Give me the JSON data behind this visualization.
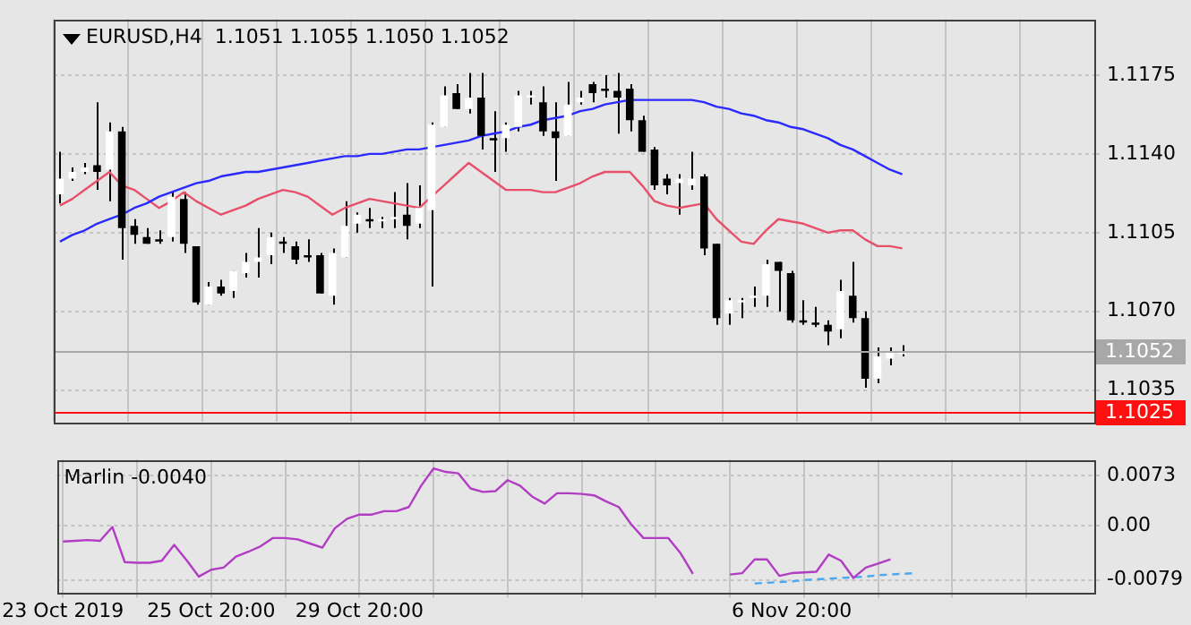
{
  "chart_data": [
    {
      "type": "candlestick",
      "title": "EURUSD,H4  1.1051 1.1055 1.1050 1.1052",
      "categories": [
        null,
        null,
        null,
        null,
        null,
        null,
        null,
        null,
        null,
        null,
        null,
        null,
        null,
        null,
        null,
        null,
        null,
        null,
        null,
        null,
        null,
        null,
        null,
        null,
        null,
        null,
        null,
        null,
        null,
        null,
        null,
        null,
        null,
        null,
        null,
        null,
        null,
        null,
        null,
        null,
        null,
        null,
        null,
        null,
        null,
        null,
        null,
        null,
        null,
        null,
        null,
        null,
        null,
        null,
        null,
        null,
        null,
        null,
        null,
        null,
        null,
        null,
        null,
        null,
        null,
        null,
        null,
        null,
        null,
        null,
        null,
        null,
        null,
        null,
        null,
        null,
        null,
        null,
        null,
        null,
        null,
        null,
        null,
        null
      ],
      "ohlc": [
        [
          1.1122,
          1.1141,
          1.1118,
          1.1129
        ],
        [
          1.1129,
          1.1134,
          1.1128,
          1.1132
        ],
        [
          1.1132,
          1.1136,
          1.1131,
          1.1134
        ],
        [
          1.1135,
          1.1163,
          1.1124,
          1.1132
        ],
        [
          1.1133,
          1.1154,
          1.1119,
          1.115
        ],
        [
          1.115,
          1.1152,
          1.1093,
          1.1107
        ],
        [
          1.1108,
          1.1111,
          1.11,
          1.1104
        ],
        [
          1.1103,
          1.1107,
          1.11,
          1.11
        ],
        [
          1.1102,
          1.1106,
          1.11,
          1.1101
        ],
        [
          1.1103,
          1.1123,
          1.1101,
          1.1121
        ],
        [
          1.112,
          1.1123,
          1.1096,
          1.11
        ],
        [
          1.1099,
          1.1099,
          1.1073,
          1.1074
        ],
        [
          1.1073,
          1.1083,
          1.1073,
          1.1081
        ],
        [
          1.1081,
          1.1084,
          1.1077,
          1.1078
        ],
        [
          1.1079,
          1.1088,
          1.1076,
          1.1088
        ],
        [
          1.1087,
          1.1096,
          1.1085,
          1.1092
        ],
        [
          1.1092,
          1.1107,
          1.1085,
          1.1094
        ],
        [
          1.1095,
          1.1105,
          1.1091,
          1.1103
        ],
        [
          1.1101,
          1.1103,
          1.1096,
          1.11
        ],
        [
          1.1099,
          1.1101,
          1.1091,
          1.1093
        ],
        [
          1.1095,
          1.1102,
          1.1092,
          1.1094
        ],
        [
          1.1095,
          1.1096,
          1.1078,
          1.1078
        ],
        [
          1.1077,
          1.1098,
          1.1073,
          1.1096
        ],
        [
          1.1094,
          1.1119,
          1.1094,
          1.1108
        ],
        [
          1.1109,
          1.1114,
          1.1105,
          1.1113
        ],
        [
          1.1111,
          1.1116,
          1.1107,
          1.111
        ],
        [
          1.111,
          1.1112,
          1.1107,
          1.1111
        ],
        [
          1.1111,
          1.1123,
          1.1107,
          1.1112
        ],
        [
          1.1113,
          1.1127,
          1.1102,
          1.1108
        ],
        [
          1.1109,
          1.1126,
          1.1107,
          1.1116
        ],
        [
          1.1115,
          1.1154,
          1.1081,
          1.1153
        ],
        [
          1.1152,
          1.117,
          1.1152,
          1.1166
        ],
        [
          1.1167,
          1.1171,
          1.116,
          1.116
        ],
        [
          1.116,
          1.1176,
          1.1158,
          1.1165
        ],
        [
          1.1165,
          1.1176,
          1.1142,
          1.1148
        ],
        [
          1.1147,
          1.1159,
          1.1132,
          1.1146
        ],
        [
          1.1147,
          1.1154,
          1.1141,
          1.1153
        ],
        [
          1.1152,
          1.1168,
          1.115,
          1.1166
        ],
        [
          1.1165,
          1.1168,
          1.1162,
          1.1166
        ],
        [
          1.1163,
          1.117,
          1.1148,
          1.115
        ],
        [
          1.115,
          1.1163,
          1.1128,
          1.1147
        ],
        [
          1.1148,
          1.1172,
          1.1148,
          1.1162
        ],
        [
          1.1163,
          1.1168,
          1.1162,
          1.1165
        ],
        [
          1.1171,
          1.1172,
          1.1163,
          1.1167
        ],
        [
          1.1169,
          1.1175,
          1.1165,
          1.1168
        ],
        [
          1.1168,
          1.1176,
          1.1149,
          1.1165
        ],
        [
          1.1169,
          1.1171,
          1.115,
          1.1155
        ],
        [
          1.1155,
          1.1157,
          1.1141,
          1.1141
        ],
        [
          1.1142,
          1.1143,
          1.1124,
          1.1126
        ],
        [
          1.1129,
          1.1131,
          1.1122,
          1.1126
        ],
        [
          1.1127,
          1.1131,
          1.1113,
          1.1129
        ],
        [
          1.1126,
          1.1141,
          1.1124,
          1.1129
        ],
        [
          1.113,
          1.1131,
          1.1095,
          1.1098
        ],
        [
          1.11,
          1.11,
          1.1064,
          1.1067
        ],
        [
          1.1069,
          1.1076,
          1.1064,
          1.1075
        ],
        [
          1.1074,
          1.1076,
          1.1067,
          1.1075
        ],
        [
          1.1076,
          1.1081,
          1.1072,
          1.1077
        ],
        [
          1.1077,
          1.1093,
          1.1072,
          1.1091
        ],
        [
          1.1092,
          1.1092,
          1.107,
          1.1088
        ],
        [
          1.1087,
          1.1088,
          1.1065,
          1.1066
        ],
        [
          1.1066,
          1.1075,
          1.1064,
          1.1065
        ],
        [
          1.1065,
          1.1072,
          1.1063,
          1.1064
        ],
        [
          1.1064,
          1.1066,
          1.1055,
          1.1061
        ],
        [
          1.1062,
          1.1084,
          1.1058,
          1.1079
        ],
        [
          1.1077,
          1.1092,
          1.1065,
          1.1067
        ],
        [
          1.1067,
          1.107,
          1.1036,
          1.104
        ],
        [
          1.104,
          1.1054,
          1.1038,
          1.105
        ],
        [
          1.1049,
          1.1054,
          1.1046,
          1.1052
        ],
        [
          1.1051,
          1.1055,
          1.105,
          1.1052
        ],
        null,
        null,
        null,
        null,
        null,
        null,
        null,
        null,
        null,
        null,
        null,
        null,
        null,
        null,
        null
      ],
      "series": [
        {
          "type": "line",
          "color": "#2a2aff",
          "values": [
            1.1101,
            1.1104,
            1.1106,
            1.1109,
            1.1111,
            1.1113,
            1.1116,
            1.1118,
            1.1121,
            1.1123,
            1.1125,
            1.1127,
            1.1128,
            1.113,
            1.1131,
            1.1132,
            1.1132,
            1.1133,
            1.1134,
            1.1135,
            1.1136,
            1.1137,
            1.1138,
            1.1139,
            1.1139,
            1.114,
            1.114,
            1.1141,
            1.1142,
            1.1142,
            1.1143,
            1.1144,
            1.1145,
            1.1146,
            1.1148,
            1.1149,
            1.115,
            1.1152,
            1.1153,
            1.1155,
            1.1156,
            1.1157,
            1.1159,
            1.116,
            1.1162,
            1.1163,
            1.1164,
            1.1164,
            1.1164,
            1.1164,
            1.1164,
            1.1164,
            1.1163,
            1.1161,
            1.116,
            1.1158,
            1.1157,
            1.1155,
            1.1154,
            1.1152,
            1.1151,
            1.1149,
            1.1147,
            1.1144,
            1.1142,
            1.1139,
            1.1136,
            1.1133,
            1.1131,
            null,
            null,
            null,
            null,
            null,
            null,
            null,
            null,
            null,
            null,
            null,
            null,
            null,
            null,
            null
          ]
        },
        {
          "type": "line",
          "color": "#e8506a",
          "values": [
            1.1117,
            1.112,
            1.1124,
            1.1128,
            1.1132,
            1.1126,
            1.1124,
            1.112,
            1.1116,
            1.1119,
            1.1123,
            1.1119,
            1.1116,
            1.1113,
            1.1115,
            1.1117,
            1.112,
            1.1122,
            1.1124,
            1.1123,
            1.1121,
            1.1117,
            1.1113,
            1.1116,
            1.1118,
            1.112,
            1.1119,
            1.1118,
            1.1117,
            1.1116,
            1.1121,
            1.1126,
            1.1131,
            1.1136,
            1.1132,
            1.1128,
            1.1124,
            1.1124,
            1.1124,
            1.1123,
            1.1123,
            1.1125,
            1.1127,
            1.113,
            1.1132,
            1.1132,
            1.1132,
            1.1126,
            1.1119,
            1.1117,
            1.1116,
            1.1117,
            1.1118,
            1.1111,
            1.1106,
            1.1101,
            1.11,
            1.1106,
            1.1111,
            1.111,
            1.1109,
            1.1107,
            1.1105,
            1.1106,
            1.1106,
            1.1102,
            1.1099,
            1.1099,
            1.1098,
            null,
            null,
            null,
            null,
            null,
            null,
            null,
            null,
            null,
            null,
            null,
            null,
            null,
            null,
            null
          ]
        }
      ],
      "ylim": [
        1.1021,
        1.12
      ],
      "yticks": [
        1.1175,
        {
          "value": 1.114,
          "label": "1.1140"
        },
        1.1105,
        {
          "value": 1.107,
          "label": "1.1070"
        },
        1.1035
      ],
      "ref_lines": [
        {
          "axis": "y",
          "value": 1.1052,
          "label": "1.1052",
          "color": "#a8a8a8"
        },
        {
          "axis": "y",
          "value": 1.1025,
          "label": "1.1025",
          "color": "#ff1010"
        }
      ],
      "grid": true,
      "tick_labels": "y"
    },
    {
      "type": "line",
      "title": "Marlin -0.0040",
      "categories": [
        "23 Oct 2019",
        null,
        null,
        null,
        null,
        null,
        null,
        null,
        null,
        null,
        null,
        null,
        "25 Oct 20:00",
        null,
        null,
        null,
        null,
        null,
        null,
        null,
        null,
        null,
        null,
        null,
        "29 Oct 20:00",
        null,
        null,
        null,
        null,
        null,
        null,
        null,
        null,
        null,
        null,
        null,
        null,
        null,
        null,
        null,
        null,
        null,
        null,
        null,
        null,
        null,
        null,
        null,
        null,
        null,
        null,
        null,
        null,
        null,
        null,
        null,
        null,
        null,
        null,
        "6 Nov 20:00",
        null,
        null,
        null,
        null,
        null,
        null,
        null,
        null,
        null,
        null,
        null,
        null,
        null,
        null,
        null,
        null,
        null,
        null,
        null,
        null,
        null,
        null,
        null,
        null
      ],
      "series": [
        {
          "type": "line",
          "color": "#b23cc4",
          "values": [
            -0.0023,
            -0.0022,
            -0.0021,
            -0.0022,
            -0.0002,
            -0.0053,
            -0.0054,
            -0.0054,
            -0.0051,
            -0.0028,
            -0.005,
            -0.0074,
            -0.0064,
            -0.0061,
            -0.0045,
            -0.0038,
            -0.003,
            -0.0018,
            -0.0018,
            -0.002,
            -0.0026,
            -0.0032,
            -0.0004,
            0.001,
            0.0016,
            0.0016,
            0.0021,
            0.0021,
            0.0027,
            0.0058,
            0.0083,
            0.0078,
            0.0076,
            0.0054,
            0.0049,
            0.005,
            0.0066,
            0.0058,
            0.0042,
            0.0032,
            0.0047,
            0.0047,
            0.0046,
            0.0044,
            0.0035,
            0.0027,
            0.0002,
            -0.0018,
            -0.0018,
            -0.0018,
            -0.004,
            -0.007,
            null,
            null,
            -0.0071,
            -0.0069,
            -0.0049,
            -0.0049,
            -0.0073,
            -0.0069,
            -0.0068,
            -0.0067,
            -0.0042,
            -0.0051,
            -0.0076,
            -0.0061,
            -0.0055,
            -0.0049,
            null,
            null,
            null,
            null,
            null,
            null,
            null,
            null,
            null,
            null,
            null,
            null,
            null,
            null,
            null,
            null
          ]
        },
        {
          "type": "line",
          "color": "#4aa8f0",
          "line_style": "dashed",
          "values": [
            null,
            null,
            null,
            null,
            null,
            null,
            null,
            null,
            null,
            null,
            null,
            null,
            null,
            null,
            null,
            null,
            null,
            null,
            null,
            null,
            null,
            null,
            null,
            null,
            null,
            null,
            null,
            null,
            null,
            null,
            null,
            null,
            null,
            null,
            null,
            null,
            null,
            null,
            null,
            null,
            null,
            null,
            null,
            null,
            null,
            null,
            null,
            null,
            null,
            null,
            null,
            null,
            null,
            null,
            null,
            null,
            -0.0084,
            -0.0083,
            -0.0082,
            -0.0081,
            -0.0079,
            -0.0078,
            -0.0077,
            -0.0076,
            -0.0075,
            -0.0074,
            -0.0072,
            -0.0071,
            -0.007,
            -0.0069,
            null,
            null,
            null,
            null,
            null,
            null,
            null,
            null,
            null,
            null,
            null,
            null,
            null,
            null
          ]
        }
      ],
      "ylim": [
        -0.0097,
        0.0096
      ],
      "yticks": [
        0.0073,
        {
          "value": 0,
          "label": "0.00"
        },
        -0.0079
      ],
      "grid": true
    }
  ]
}
